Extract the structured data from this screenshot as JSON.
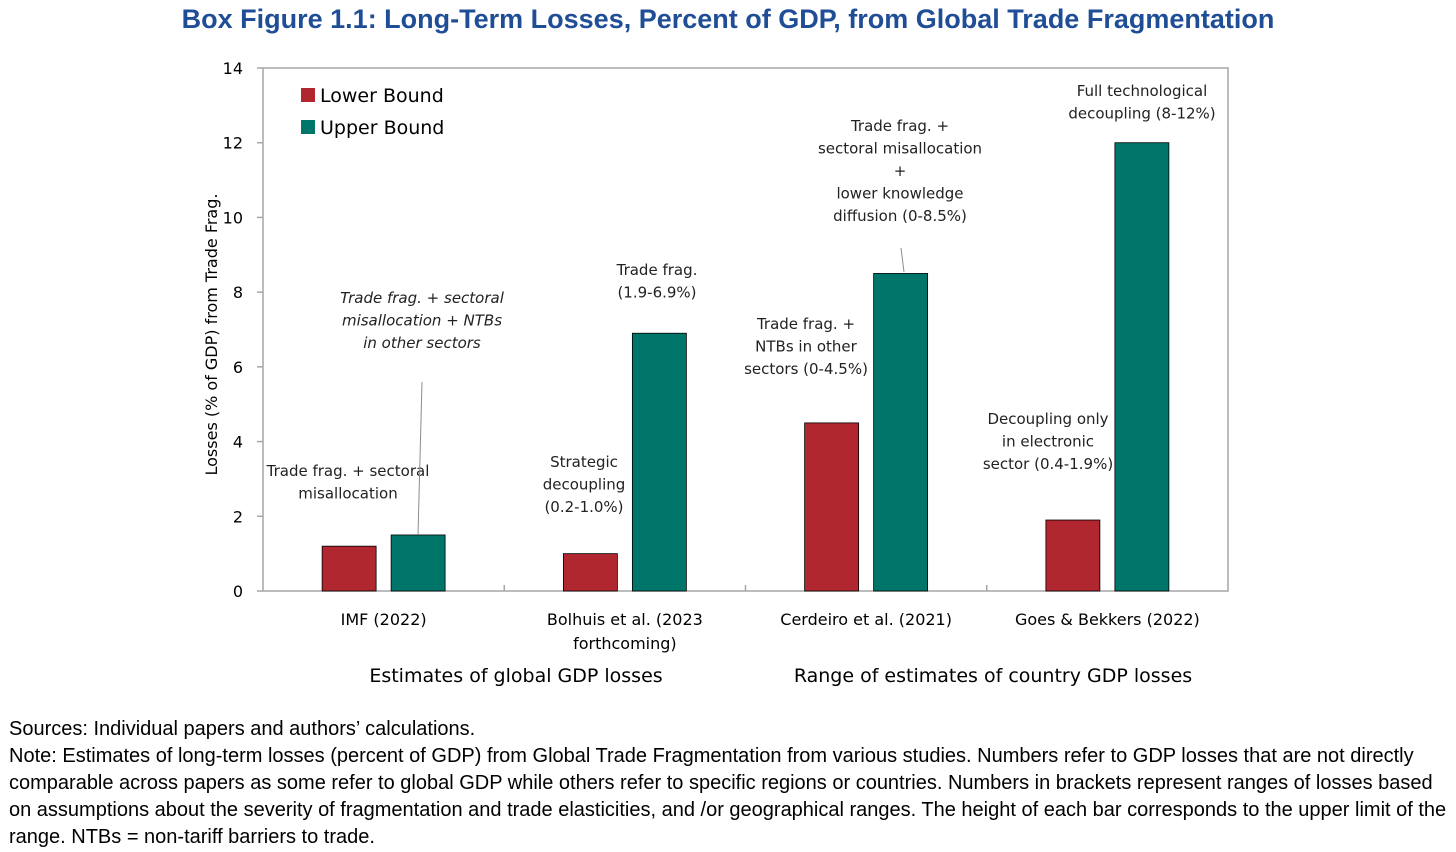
{
  "title": "Box Figure 1.1: Long-Term Losses, Percent of GDP, from Global Trade Fragmentation",
  "chart_data": {
    "type": "bar",
    "ylabel": "Losses (% of GDP) from  Trade Frag.",
    "xlabel": "",
    "ylim": [
      0,
      14
    ],
    "yticks": [
      0,
      2,
      4,
      6,
      8,
      10,
      12,
      14
    ],
    "grid": false,
    "legend_position": "top-left",
    "categories": [
      [
        "IMF (2022)"
      ],
      [
        "Bolhuis et al. (2023",
        "forthcoming)"
      ],
      [
        "Cerdeiro et al. (2021)"
      ],
      [
        "Goes & Bekkers (2022)"
      ]
    ],
    "series": [
      {
        "name": "Lower Bound",
        "color": "#b0272f",
        "values": [
          1.2,
          1.0,
          4.5,
          1.9
        ]
      },
      {
        "name": "Upper Bound",
        "color": "#00766a",
        "values": [
          1.5,
          6.9,
          8.5,
          12.0
        ]
      }
    ],
    "group_labels": [
      "Estimates of global GDP losses",
      "Range of estimates of country GDP losses"
    ],
    "annotations": [
      {
        "category": 0,
        "series": 0,
        "lines": [
          "Trade frag. + sectoral",
          "misallocation"
        ],
        "italic": false
      },
      {
        "category": 0,
        "series": 1,
        "lines": [
          "Trade frag. + sectoral",
          "misallocation + NTBs",
          "in other sectors"
        ],
        "italic": true,
        "leader": true
      },
      {
        "category": 1,
        "series": 0,
        "lines": [
          "Strategic",
          "decoupling",
          "(0.2-1.0%)"
        ],
        "italic": false
      },
      {
        "category": 1,
        "series": 1,
        "lines": [
          "Trade frag.",
          "(1.9-6.9%)"
        ],
        "italic": false
      },
      {
        "category": 2,
        "series": 0,
        "lines": [
          "Trade frag. +",
          "NTBs in other",
          "sectors (0-4.5%)"
        ],
        "italic": false
      },
      {
        "category": 2,
        "series": 1,
        "lines": [
          "Trade frag. +",
          "sectoral misallocation",
          "+",
          "lower knowledge",
          "diffusion (0-8.5%)"
        ],
        "italic": false,
        "leader": true
      },
      {
        "category": 3,
        "series": 0,
        "lines": [
          "Decoupling only",
          "in electronic",
          "sector (0.4-1.9%)"
        ],
        "italic": false
      },
      {
        "category": 3,
        "series": 1,
        "lines": [
          "Full technological",
          "decoupling (8-12%)"
        ],
        "italic": false
      }
    ]
  },
  "footer": {
    "sources": "Sources: Individual papers and authors’ calculations.",
    "note": "Note: Estimates of long-term losses (percent of GDP) from Global Trade Fragmentation from various studies. Numbers refer to GDP losses that are not directly comparable across papers as some refer to global GDP while others refer to specific regions or countries. Numbers in brackets represent ranges of losses based on assumptions about the severity of fragmentation and trade elasticities, and /or geographical ranges. The height of each bar corresponds to the upper limit of the range. NTBs = non-tariff barriers to trade."
  }
}
